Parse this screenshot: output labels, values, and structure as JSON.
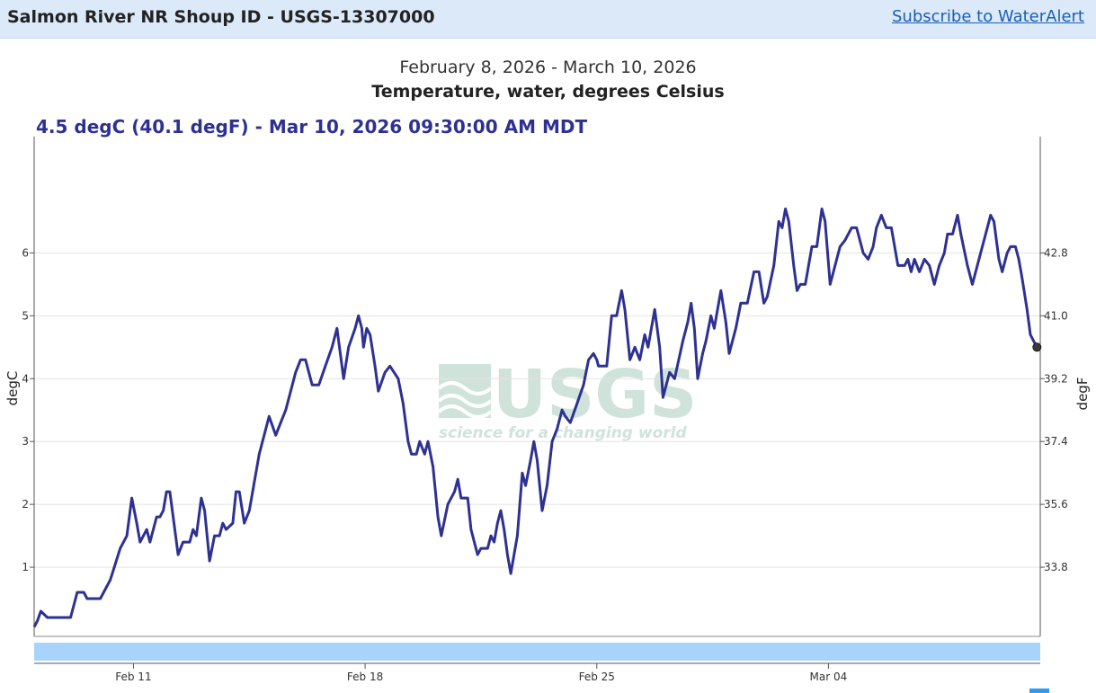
{
  "header": {
    "site_title": "Salmon River NR Shoup ID - USGS-13307000",
    "subscribe_label": "Subscribe to WaterAlert"
  },
  "colors": {
    "series": "#2e3192",
    "brush": "#a8d4fb",
    "header_bg": "#dbe9f9",
    "link": "#1a5fb4"
  },
  "chart_data": {
    "type": "line",
    "title": "Temperature, water, degrees Celsius",
    "subtitle": "February 8, 2026 - March 10, 2026",
    "tooltip": "4.5 degC (40.1 degF) - Mar 10, 2026 09:30:00 AM MDT",
    "ylabel": "degC",
    "ylabel_right": "degF",
    "ylim": [
      -0.1,
      7.85
    ],
    "yticks": [
      1,
      2,
      3,
      4,
      5,
      6
    ],
    "yticks_right": [
      33.8,
      35.6,
      37.4,
      39.2,
      41.0,
      42.8
    ],
    "yticks_right_labels": [
      "33.8",
      "35.6",
      "37.4",
      "39.2",
      "41.0",
      "42.8"
    ],
    "x_range_days": [
      0,
      30.4
    ],
    "xticks": [
      {
        "label": "Feb 11",
        "day": 3.0
      },
      {
        "label": "Feb 18",
        "day": 10.0
      },
      {
        "label": "Feb 25",
        "day": 17.0
      },
      {
        "label": "Mar 04",
        "day": 24.0
      }
    ],
    "grid": true,
    "watermark": {
      "logo": "USGS",
      "tagline": "science for a changing world"
    },
    "series": [
      {
        "values": [
          [
            0.0,
            0.05
          ],
          [
            0.1,
            0.15
          ],
          [
            0.2,
            0.3
          ],
          [
            0.4,
            0.2
          ],
          [
            1.0,
            0.2
          ],
          [
            1.1,
            0.2
          ],
          [
            1.2,
            0.4
          ],
          [
            1.3,
            0.6
          ],
          [
            1.5,
            0.6
          ],
          [
            1.6,
            0.5
          ],
          [
            2.0,
            0.5
          ],
          [
            2.3,
            0.8
          ],
          [
            2.6,
            1.3
          ],
          [
            2.8,
            1.5
          ],
          [
            2.95,
            2.1
          ],
          [
            3.1,
            1.7
          ],
          [
            3.2,
            1.4
          ],
          [
            3.4,
            1.6
          ],
          [
            3.5,
            1.4
          ],
          [
            3.7,
            1.8
          ],
          [
            3.8,
            1.8
          ],
          [
            3.9,
            1.9
          ],
          [
            4.0,
            2.2
          ],
          [
            4.1,
            2.2
          ],
          [
            4.2,
            1.8
          ],
          [
            4.35,
            1.2
          ],
          [
            4.5,
            1.4
          ],
          [
            4.7,
            1.4
          ],
          [
            4.8,
            1.6
          ],
          [
            4.9,
            1.5
          ],
          [
            5.05,
            2.1
          ],
          [
            5.15,
            1.9
          ],
          [
            5.3,
            1.1
          ],
          [
            5.45,
            1.5
          ],
          [
            5.6,
            1.5
          ],
          [
            5.7,
            1.7
          ],
          [
            5.8,
            1.6
          ],
          [
            6.0,
            1.7
          ],
          [
            6.1,
            2.2
          ],
          [
            6.2,
            2.2
          ],
          [
            6.35,
            1.7
          ],
          [
            6.5,
            1.9
          ],
          [
            6.8,
            2.8
          ],
          [
            7.1,
            3.4
          ],
          [
            7.3,
            3.1
          ],
          [
            7.45,
            3.3
          ],
          [
            7.6,
            3.5
          ],
          [
            7.9,
            4.1
          ],
          [
            8.05,
            4.3
          ],
          [
            8.2,
            4.3
          ],
          [
            8.3,
            4.1
          ],
          [
            8.4,
            3.9
          ],
          [
            8.6,
            3.9
          ],
          [
            8.8,
            4.2
          ],
          [
            9.0,
            4.5
          ],
          [
            9.15,
            4.8
          ],
          [
            9.25,
            4.4
          ],
          [
            9.35,
            4.0
          ],
          [
            9.5,
            4.5
          ],
          [
            9.7,
            4.8
          ],
          [
            9.8,
            5.0
          ],
          [
            9.9,
            4.8
          ],
          [
            9.95,
            4.5
          ],
          [
            10.05,
            4.8
          ],
          [
            10.15,
            4.7
          ],
          [
            10.3,
            4.2
          ],
          [
            10.4,
            3.8
          ],
          [
            10.6,
            4.1
          ],
          [
            10.75,
            4.2
          ],
          [
            11.0,
            4.0
          ],
          [
            11.15,
            3.6
          ],
          [
            11.3,
            3.0
          ],
          [
            11.4,
            2.8
          ],
          [
            11.55,
            2.8
          ],
          [
            11.65,
            3.0
          ],
          [
            11.8,
            2.8
          ],
          [
            11.9,
            3.0
          ],
          [
            12.05,
            2.6
          ],
          [
            12.2,
            1.8
          ],
          [
            12.3,
            1.5
          ],
          [
            12.5,
            2.0
          ],
          [
            12.7,
            2.2
          ],
          [
            12.8,
            2.4
          ],
          [
            12.9,
            2.1
          ],
          [
            13.1,
            2.1
          ],
          [
            13.2,
            1.6
          ],
          [
            13.4,
            1.2
          ],
          [
            13.5,
            1.3
          ],
          [
            13.7,
            1.3
          ],
          [
            13.8,
            1.5
          ],
          [
            13.9,
            1.4
          ],
          [
            14.0,
            1.7
          ],
          [
            14.1,
            1.9
          ],
          [
            14.2,
            1.6
          ],
          [
            14.3,
            1.2
          ],
          [
            14.4,
            0.9
          ],
          [
            14.6,
            1.5
          ],
          [
            14.75,
            2.5
          ],
          [
            14.85,
            2.3
          ],
          [
            15.0,
            2.7
          ],
          [
            15.1,
            3.0
          ],
          [
            15.2,
            2.7
          ],
          [
            15.35,
            1.9
          ],
          [
            15.5,
            2.3
          ],
          [
            15.65,
            3.0
          ],
          [
            15.8,
            3.2
          ],
          [
            15.95,
            3.5
          ],
          [
            16.05,
            3.4
          ],
          [
            16.2,
            3.3
          ],
          [
            16.4,
            3.6
          ],
          [
            16.6,
            3.9
          ],
          [
            16.75,
            4.3
          ],
          [
            16.9,
            4.4
          ],
          [
            17.0,
            4.3
          ],
          [
            17.05,
            4.2
          ],
          [
            17.3,
            4.2
          ],
          [
            17.45,
            5.0
          ],
          [
            17.6,
            5.0
          ],
          [
            17.75,
            5.4
          ],
          [
            17.85,
            5.1
          ],
          [
            18.0,
            4.3
          ],
          [
            18.15,
            4.5
          ],
          [
            18.3,
            4.3
          ],
          [
            18.45,
            4.7
          ],
          [
            18.55,
            4.5
          ],
          [
            18.75,
            5.1
          ],
          [
            18.9,
            4.5
          ],
          [
            19.0,
            3.7
          ],
          [
            19.2,
            4.1
          ],
          [
            19.35,
            4.0
          ],
          [
            19.6,
            4.6
          ],
          [
            19.75,
            4.9
          ],
          [
            19.85,
            5.2
          ],
          [
            19.95,
            4.8
          ],
          [
            20.05,
            4.0
          ],
          [
            20.2,
            4.4
          ],
          [
            20.3,
            4.6
          ],
          [
            20.45,
            5.0
          ],
          [
            20.55,
            4.8
          ],
          [
            20.75,
            5.4
          ],
          [
            20.9,
            4.9
          ],
          [
            21.0,
            4.4
          ],
          [
            21.2,
            4.8
          ],
          [
            21.35,
            5.2
          ],
          [
            21.55,
            5.2
          ],
          [
            21.75,
            5.7
          ],
          [
            21.9,
            5.7
          ],
          [
            22.05,
            5.2
          ],
          [
            22.15,
            5.3
          ],
          [
            22.35,
            5.8
          ],
          [
            22.5,
            6.5
          ],
          [
            22.6,
            6.4
          ],
          [
            22.7,
            6.7
          ],
          [
            22.8,
            6.5
          ],
          [
            22.95,
            5.8
          ],
          [
            23.05,
            5.4
          ],
          [
            23.15,
            5.5
          ],
          [
            23.3,
            5.5
          ],
          [
            23.5,
            6.1
          ],
          [
            23.65,
            6.1
          ],
          [
            23.8,
            6.7
          ],
          [
            23.9,
            6.5
          ],
          [
            24.05,
            5.5
          ],
          [
            24.2,
            5.8
          ],
          [
            24.35,
            6.1
          ],
          [
            24.5,
            6.2
          ],
          [
            24.7,
            6.4
          ],
          [
            24.85,
            6.4
          ],
          [
            25.05,
            6.0
          ],
          [
            25.2,
            5.9
          ],
          [
            25.35,
            6.1
          ],
          [
            25.45,
            6.4
          ],
          [
            25.6,
            6.6
          ],
          [
            25.75,
            6.4
          ],
          [
            25.9,
            6.4
          ],
          [
            26.1,
            5.8
          ],
          [
            26.3,
            5.8
          ],
          [
            26.4,
            5.9
          ],
          [
            26.5,
            5.7
          ],
          [
            26.6,
            5.9
          ],
          [
            26.75,
            5.7
          ],
          [
            26.9,
            5.9
          ],
          [
            27.05,
            5.8
          ],
          [
            27.2,
            5.5
          ],
          [
            27.35,
            5.8
          ],
          [
            27.5,
            6.0
          ],
          [
            27.6,
            6.3
          ],
          [
            27.75,
            6.3
          ],
          [
            27.9,
            6.6
          ],
          [
            28.0,
            6.3
          ],
          [
            28.2,
            5.8
          ],
          [
            28.35,
            5.5
          ],
          [
            28.45,
            5.7
          ],
          [
            28.6,
            6.0
          ],
          [
            28.75,
            6.3
          ],
          [
            28.9,
            6.6
          ],
          [
            29.0,
            6.5
          ],
          [
            29.15,
            5.9
          ],
          [
            29.25,
            5.7
          ],
          [
            29.4,
            6.0
          ],
          [
            29.5,
            6.1
          ],
          [
            29.65,
            6.1
          ],
          [
            29.75,
            5.9
          ],
          [
            29.85,
            5.6
          ],
          [
            30.0,
            5.1
          ],
          [
            30.1,
            4.7
          ],
          [
            30.2,
            4.6
          ],
          [
            30.3,
            4.5
          ]
        ]
      }
    ]
  }
}
